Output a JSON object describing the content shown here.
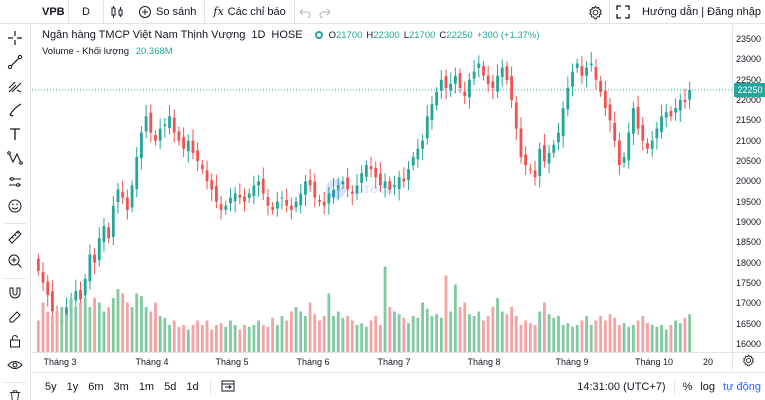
{
  "toolbar": {
    "symbol": "VPB",
    "interval": "D",
    "compare_label": "So sánh",
    "indicators_label": "Các chỉ báo",
    "help_label": "Hướng dẫn | Đăng nhập"
  },
  "legend": {
    "name": "Ngân hàng TMCP Việt Nam Thịnh Vượng",
    "interval": "1D",
    "exchange": "HOSE",
    "o": "21700",
    "h": "22300",
    "l": "21700",
    "c": "22250",
    "change": "+300 (+1.37%)",
    "volume_label": "Volume - Khối lượng",
    "volume_value": "20.368M",
    "o_key": "O",
    "h_key": "H",
    "l_key": "L",
    "c_key": "C"
  },
  "watermark_text": "TSTOCK",
  "colors": {
    "up": "#26a69a",
    "down": "#ef5350",
    "accent": "#2962ff"
  },
  "price_axis": {
    "ticks": [
      "23500",
      "23000",
      "22500",
      "22000",
      "21500",
      "21000",
      "20500",
      "20000",
      "19500",
      "19000",
      "18500",
      "18000",
      "17500",
      "17000",
      "16500",
      "16000"
    ],
    "last_price": "22250"
  },
  "time_axis": [
    "Tháng 3",
    "Tháng 4",
    "Tháng 5",
    "Tháng 6",
    "Tháng 7",
    "Tháng 8",
    "Tháng 9",
    "Tháng 10",
    "20"
  ],
  "bottombar": {
    "ranges": [
      "5y",
      "1y",
      "6m",
      "3m",
      "1m",
      "5d",
      "1d"
    ],
    "time": "14:31:00 (UTC+7)",
    "percent": "%",
    "log": "log",
    "auto": "tự động"
  },
  "chart_data": {
    "type": "candlestick",
    "ylim": [
      15800,
      23700
    ],
    "closes": [
      17800,
      17500,
      17200,
      16800,
      16500,
      16600,
      16900,
      17100,
      17300,
      17100,
      17600,
      18200,
      18000,
      18600,
      18900,
      18600,
      19400,
      19800,
      19600,
      19300,
      19900,
      20600,
      21200,
      21600,
      21200,
      21000,
      21300,
      21400,
      21600,
      21200,
      21000,
      20800,
      21000,
      20700,
      20500,
      20300,
      20000,
      19800,
      19500,
      19300,
      19400,
      19600,
      19700,
      19600,
      19500,
      19700,
      19900,
      20000,
      19700,
      19400,
      19300,
      19500,
      19600,
      19400,
      19300,
      19500,
      19700,
      20000,
      19900,
      19600,
      19500,
      19400,
      19700,
      19800,
      19900,
      20000,
      19800,
      19700,
      19900,
      20200,
      20400,
      20300,
      20100,
      19900,
      20000,
      19800,
      19900,
      20100,
      20000,
      20300,
      20600,
      20800,
      21000,
      21600,
      21900,
      22200,
      22500,
      22300,
      22400,
      22600,
      22300,
      22100,
      22500,
      22700,
      22900,
      22600,
      22400,
      22300,
      22600,
      22800,
      22500,
      22000,
      21300,
      20600,
      20400,
      20300,
      20100,
      20800,
      20500,
      20700,
      20900,
      21200,
      21800,
      22300,
      22700,
      22900,
      22600,
      22800,
      22900,
      22500,
      22200,
      21800,
      21500,
      21000,
      20400,
      20600,
      21200,
      21800,
      21300,
      21000,
      20800,
      21000,
      21300,
      21600,
      21700,
      21600,
      21800,
      22000,
      21950,
      22250
    ],
    "volumes": [
      0.35,
      0.55,
      0.45,
      0.4,
      0.45,
      0.5,
      0.42,
      0.6,
      0.5,
      0.55,
      0.6,
      0.5,
      0.6,
      0.55,
      0.45,
      0.5,
      0.6,
      0.7,
      0.65,
      0.55,
      0.5,
      0.65,
      0.62,
      0.5,
      0.45,
      0.55,
      0.4,
      0.38,
      0.3,
      0.35,
      0.28,
      0.3,
      0.25,
      0.3,
      0.35,
      0.3,
      0.35,
      0.25,
      0.3,
      0.32,
      0.28,
      0.35,
      0.3,
      0.25,
      0.3,
      0.28,
      0.3,
      0.35,
      0.3,
      0.28,
      0.38,
      0.3,
      0.4,
      0.35,
      0.45,
      0.5,
      0.45,
      0.4,
      0.55,
      0.42,
      0.35,
      0.4,
      0.65,
      0.4,
      0.45,
      0.38,
      0.4,
      0.35,
      0.3,
      0.32,
      0.28,
      0.35,
      0.4,
      0.3,
      0.95,
      0.5,
      0.45,
      0.42,
      0.38,
      0.32,
      0.4,
      0.38,
      0.55,
      0.48,
      0.4,
      0.42,
      0.38,
      0.85,
      0.45,
      0.75,
      0.5,
      0.55,
      0.42,
      0.4,
      0.45,
      0.35,
      0.4,
      0.5,
      0.6,
      0.45,
      0.42,
      0.5,
      0.4,
      0.3,
      0.35,
      0.32,
      0.3,
      0.45,
      0.55,
      0.42,
      0.38,
      0.4,
      0.3,
      0.32,
      0.28,
      0.3,
      0.35,
      0.4,
      0.3,
      0.35,
      0.4,
      0.35,
      0.42,
      0.38,
      0.3,
      0.32,
      0.28,
      0.3,
      0.35,
      0.4,
      0.32,
      0.3,
      0.28,
      0.3,
      0.25,
      0.3,
      0.35,
      0.32,
      0.38,
      0.42
    ]
  }
}
